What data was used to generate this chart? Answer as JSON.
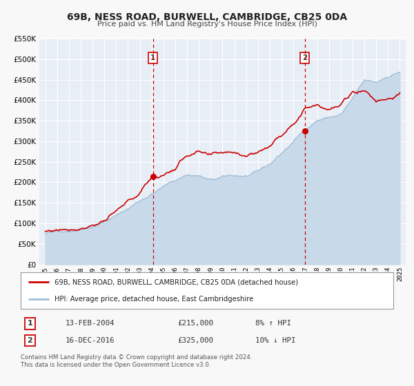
{
  "title": "69B, NESS ROAD, BURWELL, CAMBRIDGE, CB25 0DA",
  "subtitle": "Price paid vs. HM Land Registry's House Price Index (HPI)",
  "legend_line1": "69B, NESS ROAD, BURWELL, CAMBRIDGE, CB25 0DA (detached house)",
  "legend_line2": "HPI: Average price, detached house, East Cambridgeshire",
  "ann1_num": "1",
  "ann1_date": "13-FEB-2004",
  "ann1_price": "£215,000",
  "ann1_hpi": "8% ↑ HPI",
  "ann1_x": 2004.12,
  "ann1_y": 215000,
  "ann2_num": "2",
  "ann2_date": "16-DEC-2016",
  "ann2_price": "£325,000",
  "ann2_hpi": "10% ↓ HPI",
  "ann2_x": 2016.96,
  "ann2_y": 325000,
  "footer1": "Contains HM Land Registry data © Crown copyright and database right 2024.",
  "footer2": "This data is licensed under the Open Government Licence v3.0.",
  "hpi_color": "#a0bcd8",
  "hpi_fill_color": "#c8daea",
  "price_color": "#cc0000",
  "dot_color": "#cc0000",
  "vline_color": "#cc0000",
  "plot_bg_color": "#e8eef5",
  "grid_color": "#ffffff",
  "fig_bg_color": "#f8f8f8",
  "legend_bg": "#ffffff",
  "ylim": [
    0,
    550000
  ],
  "yticks": [
    0,
    50000,
    100000,
    150000,
    200000,
    250000,
    300000,
    350000,
    400000,
    450000,
    500000,
    550000
  ],
  "xlim_start": 1994.5,
  "xlim_end": 2025.5,
  "xticks": [
    1995,
    1996,
    1997,
    1998,
    1999,
    2000,
    2001,
    2002,
    2003,
    2004,
    2005,
    2006,
    2007,
    2008,
    2009,
    2010,
    2011,
    2012,
    2013,
    2014,
    2015,
    2016,
    2017,
    2018,
    2019,
    2020,
    2021,
    2022,
    2023,
    2024,
    2025
  ],
  "hpi_base_years": [
    1995,
    1996,
    1997,
    1998,
    1999,
    2000,
    2001,
    2002,
    2003,
    2004,
    2005,
    2006,
    2007,
    2008,
    2009,
    2010,
    2011,
    2012,
    2013,
    2014,
    2015,
    2016,
    2017,
    2018,
    2019,
    2020,
    2021,
    2022,
    2023,
    2024,
    2025
  ],
  "hpi_base_vals": [
    75000,
    79000,
    84000,
    92000,
    102000,
    115000,
    128000,
    145000,
    165000,
    183000,
    200000,
    215000,
    230000,
    228000,
    215000,
    220000,
    223000,
    222000,
    228000,
    245000,
    272000,
    300000,
    330000,
    355000,
    362000,
    368000,
    405000,
    445000,
    438000,
    455000,
    468000
  ],
  "price_base_years": [
    1995,
    1996,
    1997,
    1998,
    1999,
    2000,
    2001,
    2002,
    2003,
    2004,
    2005,
    2006,
    2007,
    2008,
    2009,
    2010,
    2011,
    2012,
    2013,
    2014,
    2015,
    2016,
    2017,
    2018,
    2019,
    2020,
    2021,
    2022,
    2023,
    2024,
    2025
  ],
  "price_base_vals": [
    80000,
    84000,
    89000,
    96000,
    107000,
    119000,
    133000,
    152000,
    170000,
    210000,
    215000,
    232000,
    265000,
    268000,
    248000,
    252000,
    255000,
    252000,
    260000,
    278000,
    302000,
    340000,
    375000,
    390000,
    382000,
    388000,
    415000,
    425000,
    398000,
    408000,
    418000
  ]
}
